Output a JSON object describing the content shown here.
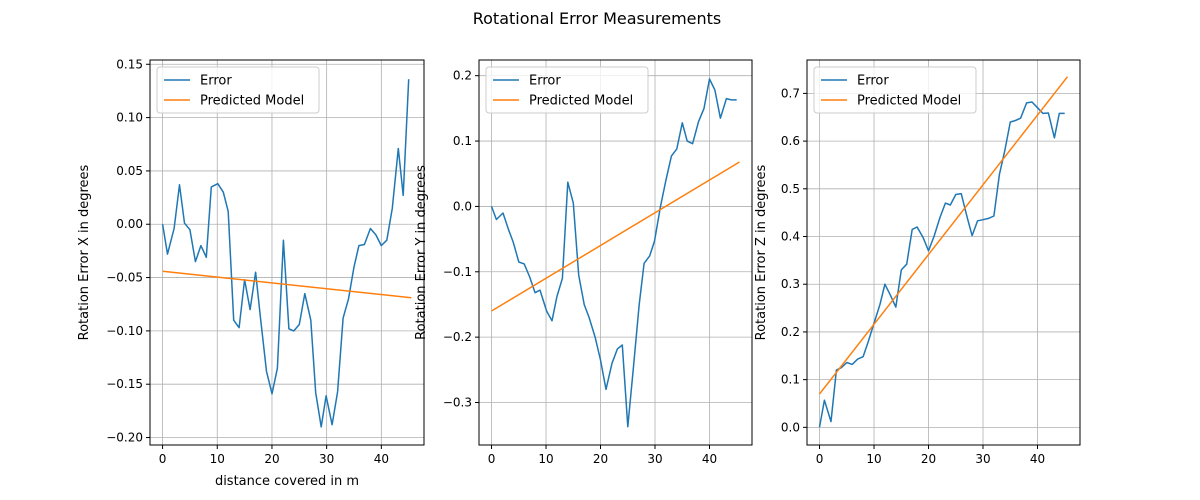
{
  "suptitle": "Rotational Error Measurements",
  "colors": {
    "error": "#1f77b4",
    "model": "#ff7f0e",
    "grid": "#b0b0b0",
    "axes": "#000000",
    "legend_border": "#cccccc"
  },
  "chart_data": [
    {
      "type": "line",
      "title": "",
      "xlabel": "distance covered in m",
      "ylabel": "Rotation Error X in degrees",
      "xlim": [
        -2.3,
        47.8
      ],
      "ylim": [
        -0.207,
        0.154
      ],
      "xticks": [
        0,
        10,
        20,
        30,
        40
      ],
      "xtick_labels": [
        "0",
        "10",
        "20",
        "30",
        "40"
      ],
      "yticks": [
        -0.2,
        -0.15,
        -0.1,
        -0.05,
        0.0,
        0.05,
        0.1,
        0.15
      ],
      "ytick_labels": [
        "−0.20",
        "−0.15",
        "−0.10",
        "−0.05",
        "0.00",
        "0.05",
        "0.10",
        "0.15"
      ],
      "grid": true,
      "legend": "upper left",
      "series": [
        {
          "name": "Error",
          "color": "#1f77b4",
          "x": [
            0,
            0.9,
            2.1,
            3.1,
            4.0,
            5.0,
            6.0,
            7.0,
            8.0,
            8.9,
            10.1,
            11.1,
            12.0,
            13.0,
            14.0,
            15.0,
            16.0,
            17.0,
            17.9,
            19.0,
            20.0,
            21.0,
            22.1,
            23.1,
            24.0,
            25.0,
            26.0,
            27.1,
            28.0,
            29.0,
            29.9,
            31.0,
            32.0,
            33.0,
            34.0,
            35.0,
            35.9,
            36.9,
            38.0,
            39.0,
            40.0,
            41.0,
            42.0,
            43.1,
            44.0,
            45.0
          ],
          "y": [
            0.0,
            -0.028,
            -0.004,
            0.037,
            0.001,
            -0.005,
            -0.035,
            -0.02,
            -0.031,
            0.035,
            0.038,
            0.03,
            0.012,
            -0.09,
            -0.097,
            -0.052,
            -0.08,
            -0.045,
            -0.088,
            -0.138,
            -0.159,
            -0.135,
            -0.015,
            -0.098,
            -0.1,
            -0.094,
            -0.065,
            -0.09,
            -0.158,
            -0.19,
            -0.161,
            -0.188,
            -0.157,
            -0.088,
            -0.07,
            -0.04,
            -0.02,
            -0.019,
            -0.004,
            -0.01,
            -0.02,
            -0.015,
            0.015,
            0.071,
            0.027,
            0.136
          ]
        },
        {
          "name": "Predicted Model",
          "color": "#ff7f0e",
          "x": [
            0,
            45.5
          ],
          "y": [
            -0.044,
            -0.069
          ]
        }
      ]
    },
    {
      "type": "line",
      "title": "",
      "xlabel": "",
      "ylabel": "Rotation Error Y in degrees",
      "xlim": [
        -2.3,
        47.8
      ],
      "ylim": [
        -0.365,
        0.224
      ],
      "xticks": [
        0,
        10,
        20,
        30,
        40
      ],
      "xtick_labels": [
        "0",
        "10",
        "20",
        "30",
        "40"
      ],
      "yticks": [
        -0.3,
        -0.2,
        -0.1,
        0.0,
        0.1,
        0.2
      ],
      "ytick_labels": [
        "−0.3",
        "−0.2",
        "−0.1",
        "0.0",
        "0.1",
        "0.2"
      ],
      "grid": true,
      "legend": "upper left",
      "series": [
        {
          "name": "Error",
          "color": "#1f77b4",
          "x": [
            0,
            0.9,
            2.1,
            3.1,
            4.0,
            5.0,
            6.0,
            7.0,
            8.0,
            8.9,
            10.1,
            11.1,
            12.0,
            13.0,
            14.0,
            15.0,
            16.0,
            17.0,
            17.9,
            19.0,
            20.0,
            21.0,
            22.1,
            23.1,
            24.0,
            25.0,
            26.0,
            27.1,
            28.0,
            29.0,
            29.9,
            31.0,
            32.0,
            33.0,
            34.0,
            35.0,
            35.9,
            36.9,
            38.0,
            39.0,
            40.0,
            41.0,
            42.0,
            43.1,
            44.0,
            45.0
          ],
          "y": [
            0.0,
            -0.02,
            -0.01,
            -0.035,
            -0.055,
            -0.085,
            -0.088,
            -0.108,
            -0.132,
            -0.128,
            -0.16,
            -0.175,
            -0.138,
            -0.11,
            0.037,
            0.005,
            -0.105,
            -0.15,
            -0.17,
            -0.2,
            -0.235,
            -0.28,
            -0.24,
            -0.218,
            -0.212,
            -0.337,
            -0.25,
            -0.15,
            -0.087,
            -0.076,
            -0.053,
            0.0,
            0.04,
            0.077,
            0.088,
            0.128,
            0.1,
            0.096,
            0.13,
            0.15,
            0.195,
            0.178,
            0.135,
            0.165,
            0.163,
            0.163
          ]
        },
        {
          "name": "Predicted Model",
          "color": "#ff7f0e",
          "x": [
            0,
            45.5
          ],
          "y": [
            -0.16,
            0.068
          ]
        }
      ]
    },
    {
      "type": "line",
      "title": "",
      "xlabel": "",
      "ylabel": "Rotation Error Z in degrees",
      "xlim": [
        -2.3,
        47.8
      ],
      "ylim": [
        -0.037,
        0.77
      ],
      "xticks": [
        0,
        10,
        20,
        30,
        40
      ],
      "xtick_labels": [
        "0",
        "10",
        "20",
        "30",
        "40"
      ],
      "yticks": [
        0.0,
        0.1,
        0.2,
        0.3,
        0.4,
        0.5,
        0.6,
        0.7
      ],
      "ytick_labels": [
        "0.0",
        "0.1",
        "0.2",
        "0.3",
        "0.4",
        "0.5",
        "0.6",
        "0.7"
      ],
      "grid": true,
      "legend": "upper left",
      "series": [
        {
          "name": "Error",
          "color": "#1f77b4",
          "x": [
            0,
            0.9,
            2.1,
            3.1,
            4.0,
            5.0,
            6.0,
            7.0,
            8.0,
            8.9,
            10.1,
            11.1,
            12.0,
            13.0,
            14.0,
            15.0,
            16.0,
            17.0,
            17.9,
            19.0,
            20.0,
            21.0,
            22.1,
            23.1,
            24.0,
            25.0,
            26.0,
            27.1,
            28.0,
            29.0,
            29.9,
            31.0,
            32.0,
            33.0,
            34.0,
            35.0,
            35.9,
            36.9,
            38.0,
            39.0,
            40.0,
            41.0,
            42.0,
            43.1,
            44.0,
            45.0
          ],
          "y": [
            0.0,
            0.057,
            0.012,
            0.12,
            0.125,
            0.136,
            0.132,
            0.143,
            0.148,
            0.178,
            0.222,
            0.258,
            0.3,
            0.277,
            0.252,
            0.33,
            0.342,
            0.415,
            0.42,
            0.398,
            0.37,
            0.4,
            0.44,
            0.47,
            0.466,
            0.488,
            0.49,
            0.44,
            0.402,
            0.433,
            0.435,
            0.438,
            0.443,
            0.53,
            0.58,
            0.64,
            0.643,
            0.648,
            0.68,
            0.682,
            0.67,
            0.658,
            0.659,
            0.607,
            0.658,
            0.658
          ]
        },
        {
          "name": "Predicted Model",
          "color": "#ff7f0e",
          "x": [
            0,
            45.5
          ],
          "y": [
            0.07,
            0.735
          ]
        }
      ]
    }
  ]
}
